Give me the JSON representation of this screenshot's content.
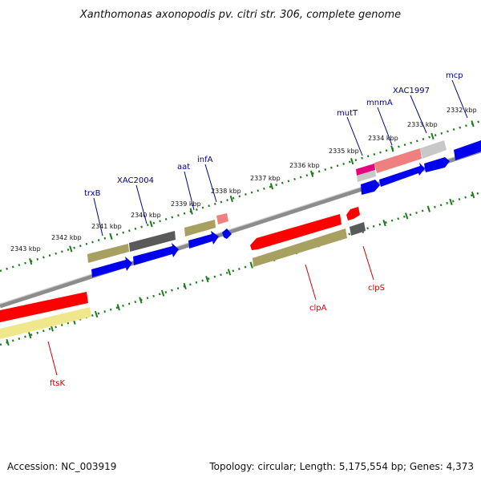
{
  "title": "Xanthomonas axonopodis pv. citri str. 306, complete genome",
  "footer": {
    "accession": "Accession: NC_003919",
    "summary": "Topology: circular; Length: 5,175,554 bp; Genes: 4,373"
  },
  "colors": {
    "backbone": "#8c8c8c",
    "tick_track": "#1f7a1f",
    "label_top": "#00008b",
    "label_bottom": "#cc0000",
    "gene_red": "#ff0000",
    "gene_olive": "#a8a060",
    "gene_blue": "#0000ee",
    "gene_darkgray": "#5a5a5a",
    "gene_pink": "#f08080",
    "gene_yellow": "#f0e68c",
    "gene_magenta": "#e6007e",
    "gene_lightgray": "#c8c8c8"
  },
  "ticks": [
    "2343 kbp",
    "2342 kbp",
    "2341 kbp",
    "2340 kbp",
    "2339 kbp",
    "2338 kbp",
    "2337 kbp",
    "2336 kbp",
    "2335 kbp",
    "2334 kbp",
    "2333 kbp",
    "2332 kbp"
  ],
  "gene_labels": [
    "trxB",
    "XAC2004",
    "aat",
    "infA",
    "mutT",
    "mnmA",
    "XAC1997",
    "mcp",
    "ftsK",
    "clpA",
    "clpS"
  ]
}
